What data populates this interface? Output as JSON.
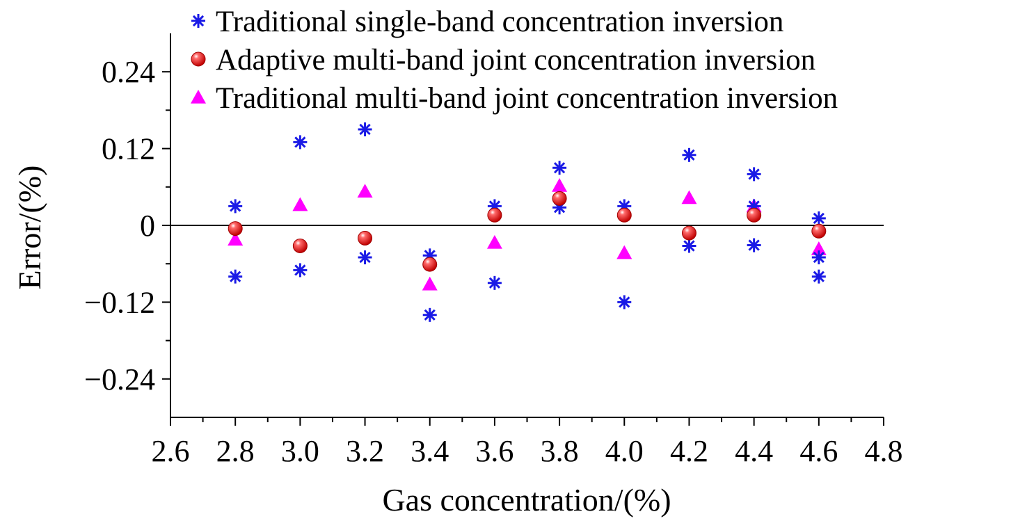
{
  "chart_data": {
    "type": "scatter",
    "xlabel": "Gas concentration/(%)",
    "ylabel": "Error/(%)",
    "xlim": [
      2.6,
      4.8
    ],
    "ylim": [
      -0.3,
      0.3
    ],
    "x_ticks": [
      2.6,
      2.8,
      3.0,
      3.2,
      3.4,
      3.6,
      3.8,
      4.0,
      4.2,
      4.4,
      4.6,
      4.8
    ],
    "x_tick_labels": [
      "2.6",
      "2.8",
      "3.0",
      "3.2",
      "3.4",
      "3.6",
      "3.8",
      "4.0",
      "4.2",
      "4.4",
      "4.6",
      "4.8"
    ],
    "y_ticks": [
      0.24,
      0.12,
      0,
      -0.12,
      -0.24
    ],
    "y_tick_labels": [
      "0.24",
      "0.12",
      "0",
      "−0.12",
      "−0.24"
    ],
    "zero_line": true,
    "grid": false,
    "legend_position": "top-right",
    "series": [
      {
        "name": "Traditional single-band concentration inversion",
        "marker": "asterisk",
        "color": "#1a1ae6",
        "points": [
          [
            2.8,
            0.03
          ],
          [
            2.8,
            -0.08
          ],
          [
            3.0,
            0.13
          ],
          [
            3.0,
            -0.07
          ],
          [
            3.2,
            0.15
          ],
          [
            3.2,
            -0.05
          ],
          [
            3.4,
            -0.047
          ],
          [
            3.4,
            -0.14
          ],
          [
            3.6,
            0.03
          ],
          [
            3.6,
            -0.09
          ],
          [
            3.8,
            0.09
          ],
          [
            3.8,
            0.028
          ],
          [
            4.0,
            0.03
          ],
          [
            4.0,
            -0.12
          ],
          [
            4.2,
            0.11
          ],
          [
            4.2,
            -0.032
          ],
          [
            4.4,
            0.08
          ],
          [
            4.4,
            0.03
          ],
          [
            4.4,
            -0.031
          ],
          [
            4.6,
            0.011
          ],
          [
            4.6,
            -0.05
          ],
          [
            4.6,
            -0.08
          ]
        ]
      },
      {
        "name": "Adaptive multi-band joint concentration inversion",
        "marker": "sphere",
        "color": "#e01010",
        "points": [
          [
            2.8,
            -0.005
          ],
          [
            3.0,
            -0.032
          ],
          [
            3.2,
            -0.02
          ],
          [
            3.4,
            -0.061
          ],
          [
            3.6,
            0.016
          ],
          [
            3.8,
            0.042
          ],
          [
            4.0,
            0.016
          ],
          [
            4.2,
            -0.012
          ],
          [
            4.4,
            0.016
          ],
          [
            4.6,
            -0.009
          ]
        ]
      },
      {
        "name": "Traditional multi-band joint concentration inversion",
        "marker": "triangle",
        "color": "#ff00ff",
        "points": [
          [
            2.8,
            -0.022
          ],
          [
            3.0,
            0.032
          ],
          [
            3.2,
            0.053
          ],
          [
            3.4,
            -0.092
          ],
          [
            3.6,
            -0.027
          ],
          [
            3.8,
            0.062
          ],
          [
            4.0,
            -0.043
          ],
          [
            4.2,
            0.043
          ],
          [
            4.4,
            0.03
          ],
          [
            4.6,
            -0.037
          ]
        ]
      }
    ]
  }
}
